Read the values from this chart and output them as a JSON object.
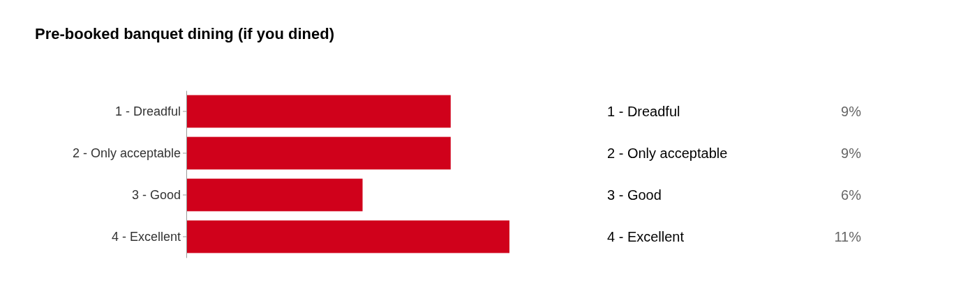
{
  "chart_data": {
    "type": "bar",
    "orientation": "horizontal",
    "title": "Pre-booked banquet dining (if you dined)",
    "categories": [
      "1 - Dreadful",
      "2 - Only acceptable",
      "3 - Good",
      "4 - Excellent"
    ],
    "values": [
      9,
      9,
      6,
      11
    ],
    "value_labels": [
      "9%",
      "9%",
      "6%",
      "11%"
    ],
    "color": "#d0011b",
    "legend": false
  }
}
